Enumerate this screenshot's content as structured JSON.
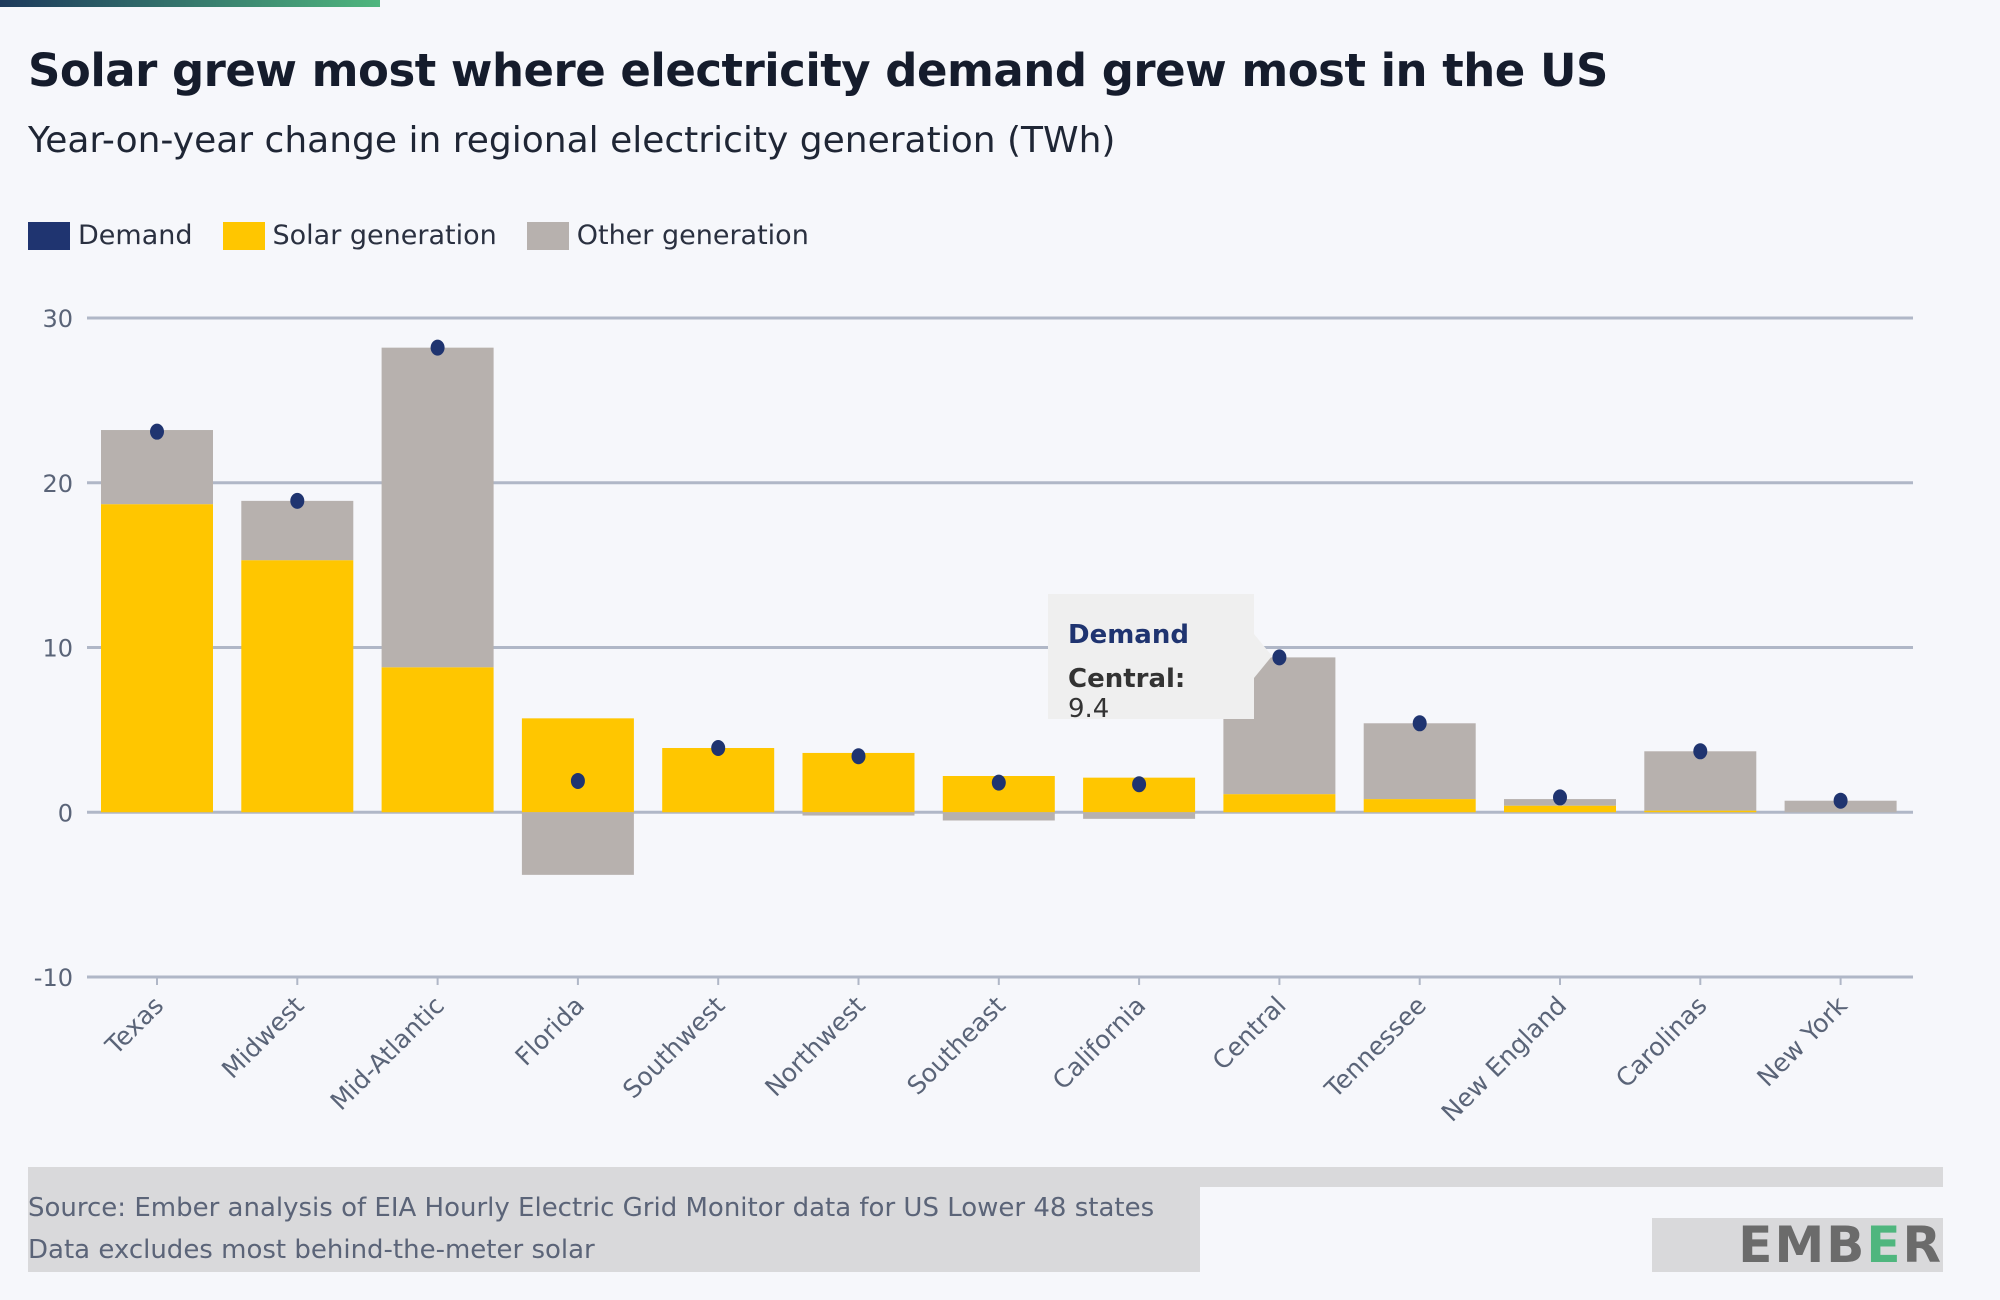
{
  "header": {
    "title": "Solar grew most where electricity demand grew most in the US",
    "subtitle": "Year-on-year change in regional electricity generation (TWh)"
  },
  "legend": [
    {
      "label": "Demand",
      "color": "#1f3470"
    },
    {
      "label": "Solar generation",
      "color": "#ffc600"
    },
    {
      "label": "Other generation",
      "color": "#b7b1ae"
    }
  ],
  "tooltip": {
    "title": "Demand",
    "label": "Central:",
    "value": "9.4"
  },
  "footer": {
    "source": "Source: Ember analysis of EIA Hourly Electric Grid Monitor data for US Lower 48 states",
    "note": "Data excludes most behind-the-meter solar",
    "logo": "EMBER"
  },
  "chart_data": {
    "type": "bar",
    "stacked": true,
    "title": "Solar grew most where electricity demand grew most in the US",
    "subtitle": "Year-on-year change in regional electricity generation (TWh)",
    "ylim": [
      -10,
      30
    ],
    "yticks": [
      -10,
      0,
      10,
      20,
      30
    ],
    "grid": true,
    "legend_position": "top-left",
    "categories": [
      "Texas",
      "Midwest",
      "Mid-Atlantic",
      "Florida",
      "Southwest",
      "Northwest",
      "Southeast",
      "California",
      "Central",
      "Tennessee",
      "New England",
      "Carolinas",
      "New York"
    ],
    "series": [
      {
        "name": "Solar generation",
        "color": "#ffc600",
        "values": [
          18.7,
          15.3,
          8.8,
          5.7,
          3.9,
          3.6,
          2.2,
          2.1,
          1.1,
          0.8,
          0.4,
          0.1,
          0.0
        ]
      },
      {
        "name": "Other generation",
        "color": "#b7b1ae",
        "values": [
          4.5,
          3.6,
          19.4,
          -3.8,
          0.0,
          -0.2,
          -0.5,
          -0.4,
          8.3,
          4.6,
          0.4,
          3.6,
          0.7
        ]
      },
      {
        "name": "Demand",
        "color": "#1f3470",
        "type": "dot",
        "values": [
          23.1,
          18.9,
          28.2,
          1.9,
          3.9,
          3.4,
          1.8,
          1.7,
          9.4,
          5.4,
          0.9,
          3.7,
          0.7
        ]
      }
    ]
  }
}
